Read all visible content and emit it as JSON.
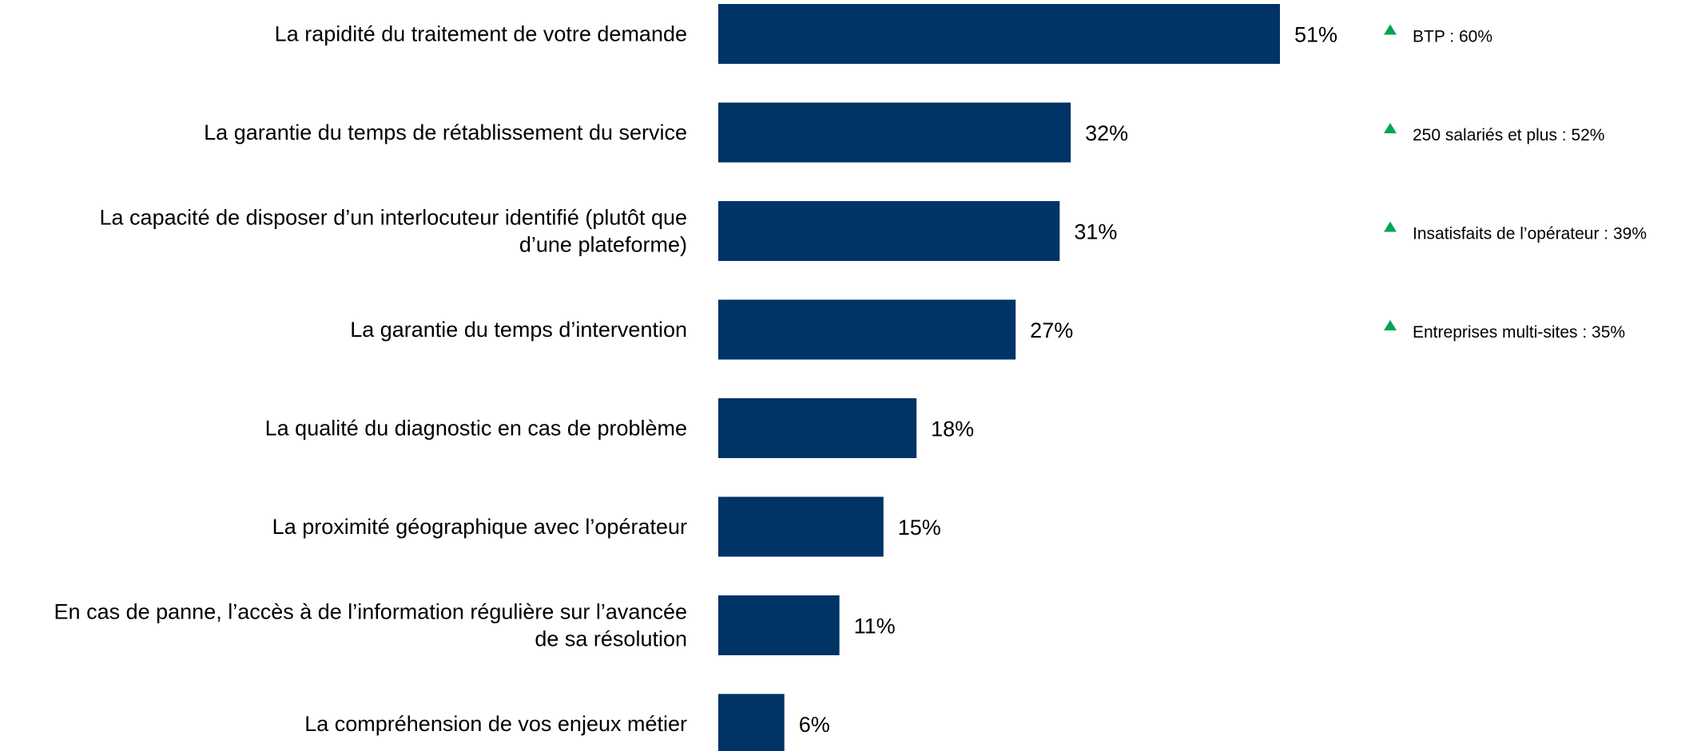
{
  "chart_data": {
    "type": "bar",
    "orientation": "horizontal",
    "categories": [
      [
        "La rapidité du traitement de votre demande"
      ],
      [
        "La garantie du temps de rétablissement du service"
      ],
      [
        "La capacité de disposer d’un interlocuteur identifié (plutôt que",
        "d’une plateforme)"
      ],
      [
        "La garantie du temps d’intervention"
      ],
      [
        "La qualité du diagnostic en cas de problème"
      ],
      [
        "La proximité géographique avec l’opérateur"
      ],
      [
        "En cas de panne, l’accès à de l’information régulière sur l’avancée",
        "de sa résolution"
      ],
      [
        "La compréhension de vos enjeux métier"
      ]
    ],
    "values": [
      51,
      32,
      31,
      27,
      18,
      15,
      11,
      6
    ],
    "value_labels": [
      "51%",
      "32%",
      "31%",
      "27%",
      "18%",
      "15%",
      "11%",
      "6%"
    ],
    "xlim": [
      0,
      51
    ],
    "grid": false,
    "bar_color": "#003366",
    "annotations": [
      {
        "category_index": 0,
        "text": "BTP : 60%"
      },
      {
        "category_index": 1,
        "text": "250 salariés et plus : 52%"
      },
      {
        "category_index": 2,
        "text": "Insatisfaits de l’opérateur : 39%"
      },
      {
        "category_index": 3,
        "text": "Entreprises multi-sites : 35%"
      }
    ],
    "annotation_marker_color": "#00A651"
  }
}
